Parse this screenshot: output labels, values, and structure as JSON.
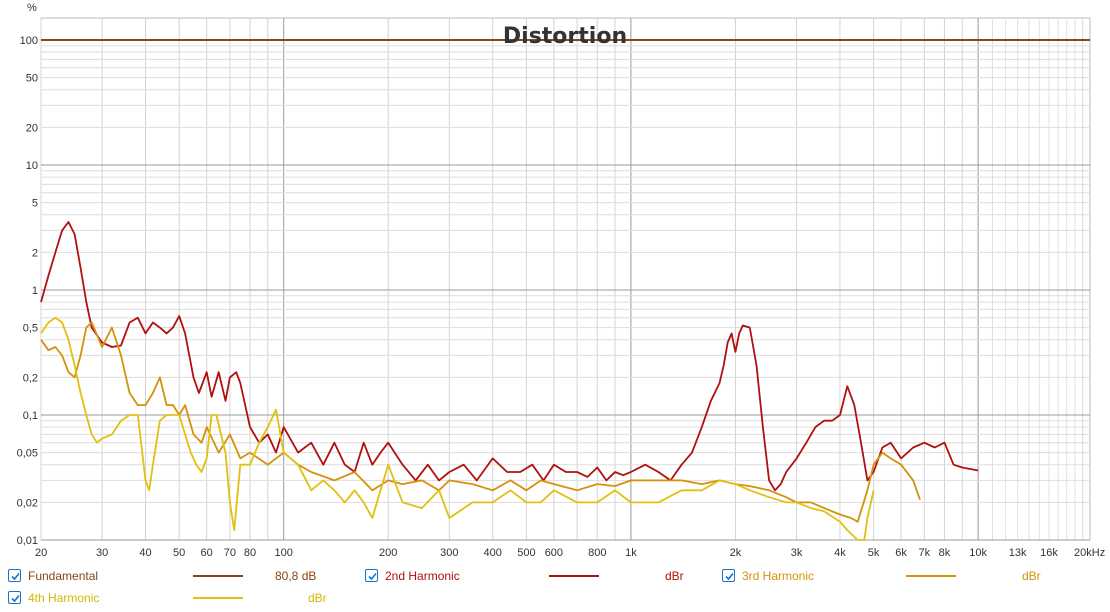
{
  "chart_data": {
    "type": "line",
    "title": "Distortion",
    "yunit": "%",
    "xscale": "log",
    "yscale": "log",
    "xlim": [
      20,
      21000
    ],
    "ylim": [
      0.01,
      150
    ],
    "grid": true,
    "xticks": [
      {
        "v": 20,
        "label": "20"
      },
      {
        "v": 30,
        "label": "30"
      },
      {
        "v": 40,
        "label": "40"
      },
      {
        "v": 50,
        "label": "50"
      },
      {
        "v": 60,
        "label": "60"
      },
      {
        "v": 70,
        "label": "70"
      },
      {
        "v": 80,
        "label": "80"
      },
      {
        "v": 100,
        "label": "100"
      },
      {
        "v": 200,
        "label": "200"
      },
      {
        "v": 300,
        "label": "300"
      },
      {
        "v": 400,
        "label": "400"
      },
      {
        "v": 500,
        "label": "500"
      },
      {
        "v": 600,
        "label": "600"
      },
      {
        "v": 800,
        "label": "800"
      },
      {
        "v": 1000,
        "label": "1k"
      },
      {
        "v": 2000,
        "label": "2k"
      },
      {
        "v": 3000,
        "label": "3k"
      },
      {
        "v": 4000,
        "label": "4k"
      },
      {
        "v": 5000,
        "label": "5k"
      },
      {
        "v": 6000,
        "label": "6k"
      },
      {
        "v": 7000,
        "label": "7k"
      },
      {
        "v": 8000,
        "label": "8k"
      },
      {
        "v": 10000,
        "label": "10k"
      },
      {
        "v": 13000,
        "label": "13k"
      },
      {
        "v": 16000,
        "label": "16k"
      },
      {
        "v": 20000,
        "label": "20kHz"
      }
    ],
    "yticks": [
      {
        "v": 100,
        "label": "100"
      },
      {
        "v": 50,
        "label": "50"
      },
      {
        "v": 20,
        "label": "20"
      },
      {
        "v": 10,
        "label": "10"
      },
      {
        "v": 5,
        "label": "5"
      },
      {
        "v": 2,
        "label": "2"
      },
      {
        "v": 1,
        "label": "1"
      },
      {
        "v": 0.5,
        "label": "0,5"
      },
      {
        "v": 0.2,
        "label": "0,2"
      },
      {
        "v": 0.1,
        "label": "0,1"
      },
      {
        "v": 0.05,
        "label": "0,05"
      },
      {
        "v": 0.02,
        "label": "0,02"
      },
      {
        "v": 0.01,
        "label": "0,01"
      }
    ],
    "series": [
      {
        "name": "Fundamental",
        "color": "#8b4513",
        "value_text": "80,8 dB",
        "x": [
          20,
          21000
        ],
        "y": [
          100,
          100
        ]
      },
      {
        "name": "2nd Harmonic",
        "color": "#b01010",
        "value_text": "dBr",
        "x": [
          20,
          21,
          22,
          23,
          24,
          25,
          26,
          27,
          28,
          30,
          32,
          34,
          36,
          38,
          40,
          42,
          44,
          46,
          48,
          50,
          52,
          55,
          57,
          60,
          62,
          65,
          68,
          70,
          73,
          75,
          80,
          85,
          90,
          95,
          100,
          110,
          120,
          130,
          140,
          150,
          160,
          170,
          180,
          190,
          200,
          220,
          240,
          260,
          280,
          300,
          330,
          360,
          400,
          440,
          480,
          520,
          560,
          600,
          650,
          700,
          750,
          800,
          850,
          900,
          950,
          1000,
          1100,
          1200,
          1300,
          1400,
          1500,
          1600,
          1700,
          1800,
          1850,
          1900,
          1950,
          2000,
          2050,
          2100,
          2200,
          2300,
          2400,
          2500,
          2600,
          2700,
          2800,
          3000,
          3200,
          3400,
          3600,
          3800,
          4000,
          4200,
          4400,
          4600,
          4800,
          5000,
          5300,
          5600,
          6000,
          6500,
          7000,
          7500,
          8000,
          8500,
          9000,
          10000
        ],
        "y": [
          0.8,
          1.3,
          2.0,
          3.0,
          3.5,
          2.8,
          1.5,
          0.8,
          0.5,
          0.38,
          0.35,
          0.36,
          0.55,
          0.6,
          0.45,
          0.55,
          0.5,
          0.45,
          0.5,
          0.62,
          0.45,
          0.2,
          0.15,
          0.22,
          0.14,
          0.22,
          0.13,
          0.2,
          0.22,
          0.18,
          0.08,
          0.06,
          0.07,
          0.05,
          0.08,
          0.05,
          0.06,
          0.04,
          0.06,
          0.04,
          0.035,
          0.06,
          0.04,
          0.05,
          0.06,
          0.04,
          0.03,
          0.04,
          0.03,
          0.035,
          0.04,
          0.03,
          0.045,
          0.035,
          0.035,
          0.04,
          0.03,
          0.04,
          0.035,
          0.035,
          0.032,
          0.038,
          0.03,
          0.035,
          0.033,
          0.035,
          0.04,
          0.035,
          0.03,
          0.04,
          0.05,
          0.08,
          0.13,
          0.18,
          0.25,
          0.38,
          0.45,
          0.32,
          0.45,
          0.52,
          0.5,
          0.25,
          0.08,
          0.03,
          0.025,
          0.028,
          0.035,
          0.045,
          0.06,
          0.08,
          0.09,
          0.09,
          0.1,
          0.17,
          0.12,
          0.06,
          0.03,
          0.035,
          0.055,
          0.06,
          0.045,
          0.055,
          0.06,
          0.055,
          0.06,
          0.04,
          0.038,
          0.036
        ]
      },
      {
        "name": "3rd Harmonic",
        "color": "#d4920a",
        "value_text": "dBr",
        "x": [
          20,
          21,
          22,
          23,
          24,
          25,
          26,
          27,
          28,
          30,
          32,
          34,
          36,
          38,
          40,
          42,
          44,
          46,
          48,
          50,
          52,
          55,
          58,
          60,
          65,
          70,
          75,
          80,
          90,
          100,
          110,
          120,
          140,
          160,
          180,
          200,
          220,
          250,
          280,
          300,
          350,
          400,
          450,
          500,
          550,
          600,
          700,
          800,
          900,
          1000,
          1200,
          1400,
          1600,
          1800,
          2000,
          2200,
          2500,
          2800,
          3000,
          3300,
          3600,
          4000,
          4300,
          4500,
          4800,
          5000,
          5300,
          5600,
          6000,
          6500,
          6800
        ],
        "y": [
          0.4,
          0.33,
          0.35,
          0.3,
          0.22,
          0.2,
          0.3,
          0.5,
          0.55,
          0.35,
          0.5,
          0.3,
          0.15,
          0.12,
          0.12,
          0.15,
          0.2,
          0.12,
          0.12,
          0.1,
          0.12,
          0.07,
          0.06,
          0.08,
          0.05,
          0.07,
          0.045,
          0.05,
          0.04,
          0.05,
          0.04,
          0.035,
          0.03,
          0.035,
          0.025,
          0.03,
          0.028,
          0.03,
          0.025,
          0.03,
          0.028,
          0.025,
          0.03,
          0.025,
          0.03,
          0.028,
          0.025,
          0.028,
          0.027,
          0.03,
          0.03,
          0.03,
          0.028,
          0.03,
          0.028,
          0.027,
          0.025,
          0.022,
          0.02,
          0.02,
          0.018,
          0.016,
          0.015,
          0.014,
          0.025,
          0.04,
          0.05,
          0.045,
          0.04,
          0.03,
          0.021
        ]
      },
      {
        "name": "4th Harmonic",
        "color": "#e0c010",
        "value_text": "dBr",
        "x": [
          20,
          21,
          22,
          23,
          24,
          25,
          26,
          27,
          28,
          29,
          30,
          32,
          34,
          36,
          38,
          40,
          41,
          42,
          44,
          46,
          48,
          50,
          52,
          54,
          56,
          58,
          60,
          62,
          64,
          66,
          68,
          70,
          72,
          75,
          80,
          85,
          90,
          95,
          100,
          110,
          120,
          130,
          140,
          150,
          160,
          170,
          180,
          190,
          200,
          220,
          250,
          280,
          300,
          350,
          400,
          450,
          500,
          550,
          600,
          700,
          800,
          900,
          1000,
          1200,
          1400,
          1600,
          1800,
          2000,
          2200,
          2500,
          2800,
          3000,
          3300,
          3600,
          4000,
          4200,
          4500,
          4700,
          4800,
          5000
        ],
        "y": [
          0.45,
          0.55,
          0.6,
          0.55,
          0.4,
          0.25,
          0.15,
          0.1,
          0.07,
          0.06,
          0.065,
          0.07,
          0.09,
          0.1,
          0.1,
          0.03,
          0.025,
          0.04,
          0.09,
          0.1,
          0.1,
          0.1,
          0.07,
          0.05,
          0.04,
          0.035,
          0.045,
          0.1,
          0.1,
          0.07,
          0.05,
          0.02,
          0.012,
          0.04,
          0.04,
          0.06,
          0.08,
          0.11,
          0.05,
          0.04,
          0.025,
          0.03,
          0.025,
          0.02,
          0.025,
          0.02,
          0.015,
          0.025,
          0.04,
          0.02,
          0.018,
          0.025,
          0.015,
          0.02,
          0.02,
          0.025,
          0.02,
          0.02,
          0.025,
          0.02,
          0.02,
          0.025,
          0.02,
          0.02,
          0.025,
          0.025,
          0.03,
          0.028,
          0.025,
          0.022,
          0.02,
          0.02,
          0.018,
          0.017,
          0.014,
          0.012,
          0.01,
          0.01,
          0.015,
          0.025
        ]
      }
    ]
  },
  "legend": {
    "check_icon": "check-icon"
  }
}
